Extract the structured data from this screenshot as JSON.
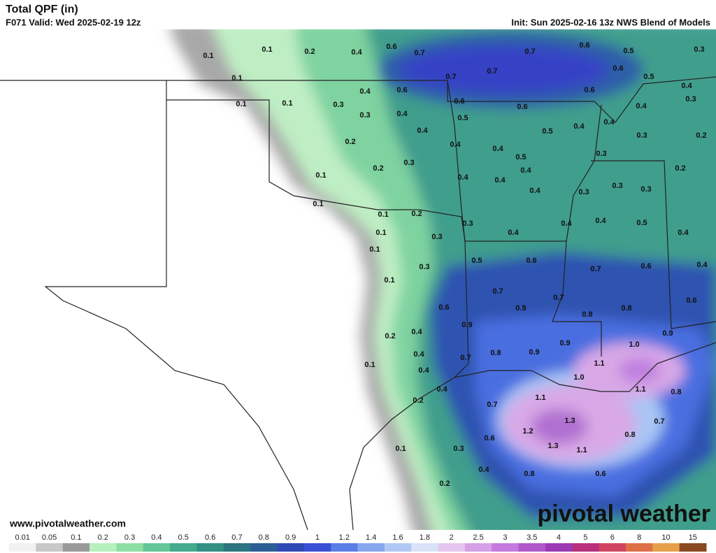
{
  "header": {
    "title": "Total QPF (in)",
    "valid": "F071 Valid: Wed 2025-02-19 12z",
    "init": "Init: Sun 2025-02-16 13z NWS Blend of Models"
  },
  "footer": {
    "website": "www.pivotalweather.com",
    "logo": "pivotal weather"
  },
  "map_labels": [
    "0.1",
    "0.1",
    "0.2",
    "0.4",
    "0.6",
    "0.7",
    "0.7",
    "0.6",
    "0.5",
    "0.3",
    "0.1",
    "0.7",
    "0.7",
    "0.6",
    "0.5",
    "0.4",
    "0.6",
    "0.6",
    "0.4",
    "0.3",
    "0.1",
    "0.1",
    "0.3",
    "0.6",
    "0.6",
    "0.4",
    "0.3",
    "0.4",
    "0.5",
    "0.4",
    "0.4",
    "0.5",
    "0.4",
    "0.3",
    "0.2",
    "0.2",
    "0.4",
    "0.4",
    "0.5",
    "0.3",
    "0.3",
    "0.2",
    "0.4",
    "0.2",
    "0.1",
    "0.4",
    "0.4",
    "0.4",
    "0.3",
    "0.3",
    "0.3",
    "0.1",
    "0.1",
    "0.2",
    "0.3",
    "0.4",
    "0.4",
    "0.5",
    "0.4",
    "0.1",
    "0.3",
    "0.4",
    "0.1",
    "0.5",
    "0.6",
    "0.7",
    "0.6",
    "0.4",
    "0.3",
    "0.1",
    "0.7",
    "0.7",
    "0.6",
    "0.6",
    "0.9",
    "0.8",
    "0.8",
    "0.9",
    "0.4",
    "0.2",
    "0.9",
    "1.0",
    "0.9",
    "0.4",
    "0.8",
    "0.9",
    "0.7",
    "0.1",
    "1.1",
    "0.4",
    "1.0",
    "0.4",
    "1.1",
    "0.8",
    "0.2",
    "1.1",
    "0.7",
    "1.3",
    "0.7",
    "1.2",
    "0.6",
    "0.8",
    "0.1",
    "0.3",
    "1.3",
    "1.1",
    "0.4",
    "0.8",
    "0.6",
    "0.2"
  ],
  "colorbar": {
    "labels": [
      "0.01",
      "0.05",
      "0.1",
      "0.2",
      "0.3",
      "0.4",
      "0.5",
      "0.6",
      "0.7",
      "0.8",
      "0.9",
      "1",
      "1.2",
      "1.4",
      "1.6",
      "1.8",
      "2",
      "2.5",
      "3",
      "3.5",
      "4",
      "5",
      "6",
      "8",
      "10",
      "15"
    ],
    "colors": [
      "#f2f2f2",
      "#c8c8c8",
      "#9a9a9a",
      "#b6f0bc",
      "#8edfa4",
      "#63c79a",
      "#44ab8e",
      "#348f84",
      "#2c7480",
      "#2b5f96",
      "#2f49b4",
      "#3a4fd4",
      "#5a7ee6",
      "#86a6ee",
      "#b2c8f4",
      "#d8e2f8",
      "#e6c6f0",
      "#d6a0e6",
      "#c47ade",
      "#b058cc",
      "#9c3ab6",
      "#b8307e",
      "#d04462",
      "#de7048",
      "#e6a04a",
      "#8a4a20"
    ]
  }
}
